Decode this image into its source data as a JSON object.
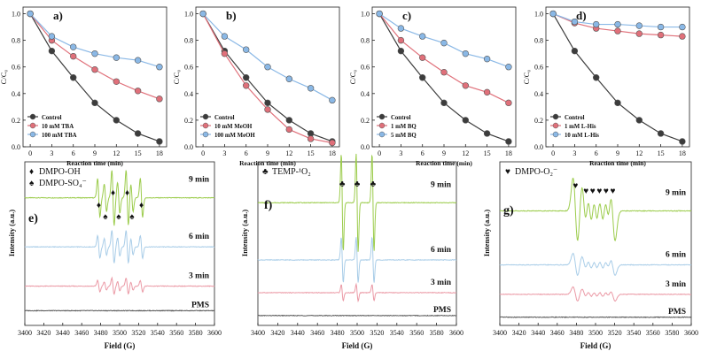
{
  "chart_data": [
    {
      "type": "line",
      "panel": "a)",
      "ylabel": "C/C₀",
      "xlabel": "Reaction time (min)",
      "x": [
        0,
        3,
        6,
        9,
        12,
        15,
        18
      ],
      "xticks": [
        "0",
        "3",
        "6",
        "9",
        "12",
        "15",
        "18"
      ],
      "yticks": [
        "0.0",
        "0.2",
        "0.4",
        "0.6",
        "0.8",
        "1.0"
      ],
      "ylim": [
        0,
        1.05
      ],
      "legend": "bottom-left",
      "series": [
        {
          "name": "Control",
          "color": "#3c3c3c",
          "values": [
            1.0,
            0.72,
            0.52,
            0.33,
            0.2,
            0.1,
            0.04
          ]
        },
        {
          "name": "10 mM TBA",
          "color": "#e0707a",
          "values": [
            1.0,
            0.8,
            0.68,
            0.58,
            0.49,
            0.42,
            0.36
          ]
        },
        {
          "name": "100 mM TBA",
          "color": "#8ab8e6",
          "values": [
            1.0,
            0.83,
            0.75,
            0.7,
            0.67,
            0.65,
            0.6
          ]
        }
      ]
    },
    {
      "type": "line",
      "panel": "b)",
      "ylabel": "C/C₀",
      "xlabel": "Reaction time (min)",
      "x": [
        0,
        3,
        6,
        9,
        12,
        15,
        18
      ],
      "xticks": [
        "0",
        "3",
        "6",
        "9",
        "12",
        "15",
        "18"
      ],
      "yticks": [
        "0.0",
        "0.2",
        "0.4",
        "0.6",
        "0.8",
        "1.0"
      ],
      "ylim": [
        0,
        1.05
      ],
      "legend": "bottom-left",
      "series": [
        {
          "name": "Control",
          "color": "#3c3c3c",
          "values": [
            1.0,
            0.72,
            0.52,
            0.33,
            0.2,
            0.1,
            0.04
          ]
        },
        {
          "name": "10 mM MeOH",
          "color": "#e0707a",
          "values": [
            1.0,
            0.7,
            0.46,
            0.28,
            0.13,
            0.06,
            0.03
          ]
        },
        {
          "name": "100 mM MeOH",
          "color": "#8ab8e6",
          "values": [
            1.0,
            0.83,
            0.73,
            0.6,
            0.51,
            0.44,
            0.35
          ]
        }
      ]
    },
    {
      "type": "line",
      "panel": "c)",
      "ylabel": "C/C₀",
      "xlabel": "Reaction time (min)",
      "x": [
        0,
        3,
        6,
        9,
        12,
        15,
        18
      ],
      "xticks": [
        "0",
        "3",
        "6",
        "9",
        "12",
        "15",
        "18"
      ],
      "yticks": [
        "0.0",
        "0.2",
        "0.4",
        "0.6",
        "0.8",
        "1.0"
      ],
      "ylim": [
        0,
        1.05
      ],
      "legend": "bottom-left",
      "series": [
        {
          "name": "Control",
          "color": "#3c3c3c",
          "values": [
            1.0,
            0.72,
            0.52,
            0.33,
            0.2,
            0.1,
            0.04
          ]
        },
        {
          "name": "1 mM BQ",
          "color": "#e0707a",
          "values": [
            1.0,
            0.8,
            0.67,
            0.56,
            0.46,
            0.41,
            0.33
          ]
        },
        {
          "name": "5 mM BQ",
          "color": "#8ab8e6",
          "values": [
            1.0,
            0.89,
            0.83,
            0.78,
            0.7,
            0.66,
            0.6
          ]
        }
      ]
    },
    {
      "type": "line",
      "panel": "d)",
      "ylabel": "C/C₀",
      "xlabel": "Reaction time (min)",
      "x": [
        0,
        3,
        6,
        9,
        12,
        15,
        18
      ],
      "xticks": [
        "0",
        "3",
        "6",
        "9",
        "12",
        "15",
        "18"
      ],
      "yticks": [
        "0.0",
        "0.2",
        "0.4",
        "0.6",
        "0.8",
        "1.0"
      ],
      "ylim": [
        0,
        1.05
      ],
      "legend": "bottom-left",
      "series": [
        {
          "name": "Control",
          "color": "#3c3c3c",
          "values": [
            1.0,
            0.72,
            0.52,
            0.33,
            0.2,
            0.1,
            0.04
          ]
        },
        {
          "name": "1 mM L-His",
          "color": "#e0707a",
          "values": [
            1.0,
            0.93,
            0.89,
            0.87,
            0.85,
            0.84,
            0.83
          ]
        },
        {
          "name": "10 mM L-His",
          "color": "#8ab8e6",
          "values": [
            1.0,
            0.94,
            0.92,
            0.92,
            0.91,
            0.9,
            0.9
          ]
        }
      ]
    },
    {
      "type": "line",
      "subtype": "epr-spectrum",
      "panel": "e)",
      "ylabel": "Intensity (a.u.)",
      "xlabel": "Field (G)",
      "xlim": [
        3400,
        3600
      ],
      "xticks": [
        "3400",
        "3420",
        "3440",
        "3460",
        "3480",
        "3500",
        "3520",
        "3540",
        "3560",
        "3580",
        "3600"
      ],
      "legend_entries": [
        {
          "symbol": "♦",
          "label": "DMPO-OH"
        },
        {
          "symbol": "♠",
          "label": "DMPO-SO₄⁻"
        }
      ],
      "peak_markers": [
        {
          "symbol": "♦",
          "x": 3493
        },
        {
          "symbol": "♦",
          "x": 3508
        },
        {
          "symbol": "♦",
          "x": 3478
        },
        {
          "symbol": "♦",
          "x": 3523
        },
        {
          "symbol": "♠",
          "x": 3485
        },
        {
          "symbol": "♠",
          "x": 3499
        },
        {
          "symbol": "♠",
          "x": 3513
        }
      ],
      "series": [
        {
          "name": "9 min",
          "color": "#9ccc4c",
          "offset": 0.78,
          "amplitude": 0.17,
          "lines": [
            3478,
            3485,
            3493,
            3499,
            3508,
            3513,
            3523
          ],
          "weights": [
            0.7,
            0.5,
            1.0,
            0.55,
            1.0,
            0.5,
            0.7
          ],
          "width": 1.2
        },
        {
          "name": "6 min",
          "color": "#a9cde8",
          "offset": 0.48,
          "amplitude": 0.1,
          "lines": [
            3478,
            3485,
            3493,
            3499,
            3508,
            3513,
            3523
          ],
          "weights": [
            0.7,
            0.5,
            1.0,
            0.55,
            1.0,
            0.5,
            0.7
          ],
          "width": 1.2
        },
        {
          "name": "3 min",
          "color": "#eb9aa6",
          "offset": 0.24,
          "amplitude": 0.05,
          "lines": [
            3478,
            3485,
            3493,
            3499,
            3508,
            3513,
            3523
          ],
          "weights": [
            0.7,
            0.5,
            1.0,
            0.55,
            1.0,
            0.5,
            0.7
          ],
          "width": 1.2
        },
        {
          "name": "PMS",
          "color": "#555555",
          "offset": 0.09,
          "amplitude": 0.0,
          "lines": [],
          "weights": [],
          "width": 1.2
        }
      ]
    },
    {
      "type": "line",
      "subtype": "epr-spectrum",
      "panel": "f)",
      "ylabel": "Intensity (a.u.)",
      "xlabel": "Field (G)",
      "xlim": [
        3400,
        3600
      ],
      "xticks": [
        "3400",
        "3420",
        "3440",
        "3460",
        "3480",
        "3500",
        "3520",
        "3540",
        "3560",
        "3580",
        "3600"
      ],
      "legend_entries": [
        {
          "symbol": "♣",
          "label": "TEMP-¹O₂"
        }
      ],
      "peak_markers": [
        {
          "symbol": "♣",
          "x": 3485
        },
        {
          "symbol": "♣",
          "x": 3500
        },
        {
          "symbol": "♣",
          "x": 3516
        }
      ],
      "series": [
        {
          "name": "9 min",
          "color": "#9ccc4c",
          "offset": 0.75,
          "amplitude": 0.3,
          "lines": [
            3485,
            3500,
            3516
          ],
          "weights": [
            1,
            1,
            1
          ],
          "width": 1.0
        },
        {
          "name": "6 min",
          "color": "#a9cde8",
          "offset": 0.4,
          "amplitude": 0.14,
          "lines": [
            3485,
            3500,
            3516
          ],
          "weights": [
            1,
            1,
            1
          ],
          "width": 1.0
        },
        {
          "name": "3 min",
          "color": "#eb9aa6",
          "offset": 0.2,
          "amplitude": 0.05,
          "lines": [
            3485,
            3500,
            3516
          ],
          "weights": [
            1,
            1,
            1
          ],
          "width": 1.0
        },
        {
          "name": "PMS",
          "color": "#555555",
          "offset": 0.06,
          "amplitude": 0.0,
          "lines": [],
          "weights": [],
          "width": 1.0
        }
      ]
    },
    {
      "type": "line",
      "subtype": "epr-spectrum",
      "panel": "g)",
      "ylabel": "Intensity (a.u.)",
      "xlabel": "Field (G)",
      "xlim": [
        3400,
        3600
      ],
      "xticks": [
        "3400",
        "3420",
        "3440",
        "3460",
        "3480",
        "3500",
        "3520",
        "3540",
        "3560",
        "3580",
        "3600"
      ],
      "legend_entries": [
        {
          "symbol": "♥",
          "label": "DMPO-O₂⁻"
        }
      ],
      "peak_markers": [
        {
          "symbol": "♥",
          "x": 3479
        },
        {
          "symbol": "♥",
          "x": 3490
        },
        {
          "symbol": "♥",
          "x": 3497
        },
        {
          "symbol": "♥",
          "x": 3504
        },
        {
          "symbol": "♥",
          "x": 3511
        },
        {
          "symbol": "♥",
          "x": 3518
        }
      ],
      "series": [
        {
          "name": "9 min",
          "color": "#9ccc4c",
          "offset": 0.7,
          "amplitude": 0.2,
          "lines": [
            3479,
            3488,
            3494,
            3500,
            3506,
            3512,
            3518
          ],
          "weights": [
            1.0,
            0.8,
            0.8,
            0.75,
            0.75,
            0.7,
            0.9
          ],
          "width": 2.5
        },
        {
          "name": "6 min",
          "color": "#a9cde8",
          "offset": 0.37,
          "amplitude": 0.07,
          "lines": [
            3479,
            3488,
            3494,
            3500,
            3506,
            3512,
            3518
          ],
          "weights": [
            1.0,
            0.8,
            0.8,
            0.75,
            0.75,
            0.7,
            0.9
          ],
          "width": 2.5
        },
        {
          "name": "3 min",
          "color": "#eb9aa6",
          "offset": 0.19,
          "amplitude": 0.045,
          "lines": [
            3479,
            3488,
            3494,
            3500,
            3506,
            3512,
            3518
          ],
          "weights": [
            1.0,
            0.8,
            0.8,
            0.75,
            0.75,
            0.7,
            0.9
          ],
          "width": 2.5
        },
        {
          "name": "PMS",
          "color": "#555555",
          "offset": 0.05,
          "amplitude": 0.0,
          "lines": [],
          "weights": [],
          "width": 2.5
        }
      ]
    }
  ]
}
